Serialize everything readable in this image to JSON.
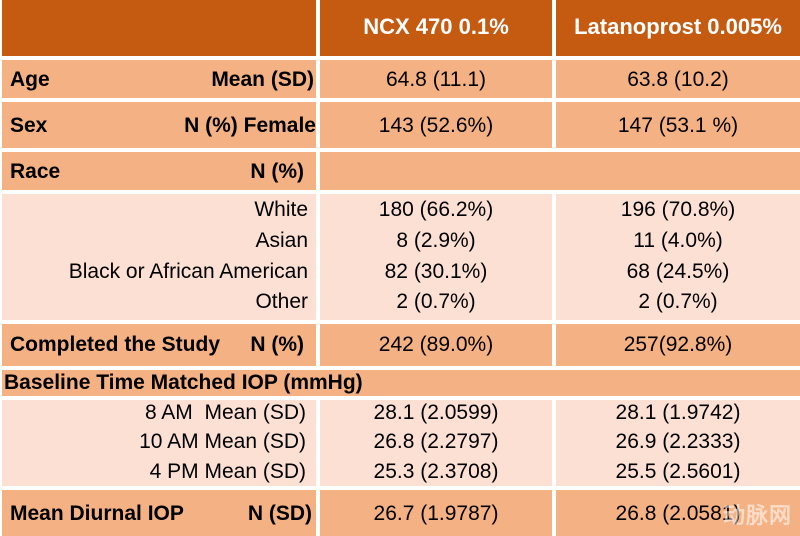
{
  "header": {
    "col1": "",
    "col2": "NCX 470 0.1%",
    "col3": "Latanoprost 0.005%"
  },
  "age": {
    "label": "Age",
    "stat": "Mean (SD)",
    "ncx": "64.8 (11.1)",
    "lat": "63.8 (10.2)"
  },
  "sex": {
    "label": "Sex",
    "stat": "N (%) Female",
    "ncx": "143 (52.6%)",
    "lat": "147 (53.1 %)"
  },
  "race": {
    "label": "Race",
    "stat": "N (%)",
    "rows": [
      {
        "name": "White",
        "ncx": "180 (66.2%)",
        "lat": "196 (70.8%)"
      },
      {
        "name": "Asian",
        "ncx": "8 (2.9%)",
        "lat": "11 (4.0%)"
      },
      {
        "name": "Black or African American",
        "ncx": "82 (30.1%)",
        "lat": "68 (24.5%)"
      },
      {
        "name": "Other",
        "ncx": "2 (0.7%)",
        "lat": "2 (0.7%)"
      }
    ]
  },
  "completed": {
    "label": "Completed the Study",
    "stat": "N (%)",
    "ncx": "242 (89.0%)",
    "lat": "257(92.8%)"
  },
  "baseline": {
    "label": "Baseline Time Matched IOP (mmHg)",
    "rows": [
      {
        "name": "8 AM  Mean (SD)",
        "ncx": "28.1 (2.0599)",
        "lat": "28.1 (1.9742)"
      },
      {
        "name": "10 AM Mean (SD)",
        "ncx": "26.8 (2.2797)",
        "lat": "26.9 (2.2333)"
      },
      {
        "name": "4 PM Mean (SD)",
        "ncx": "25.3 (2.3708)",
        "lat": "25.5 (2.5601)"
      }
    ]
  },
  "diurnal": {
    "label": "Mean Diurnal IOP",
    "stat": "N (SD)",
    "ncx": "26.7 (1.9787)",
    "lat": "26.8 (2.0581)"
  },
  "watermark": "动脉网"
}
